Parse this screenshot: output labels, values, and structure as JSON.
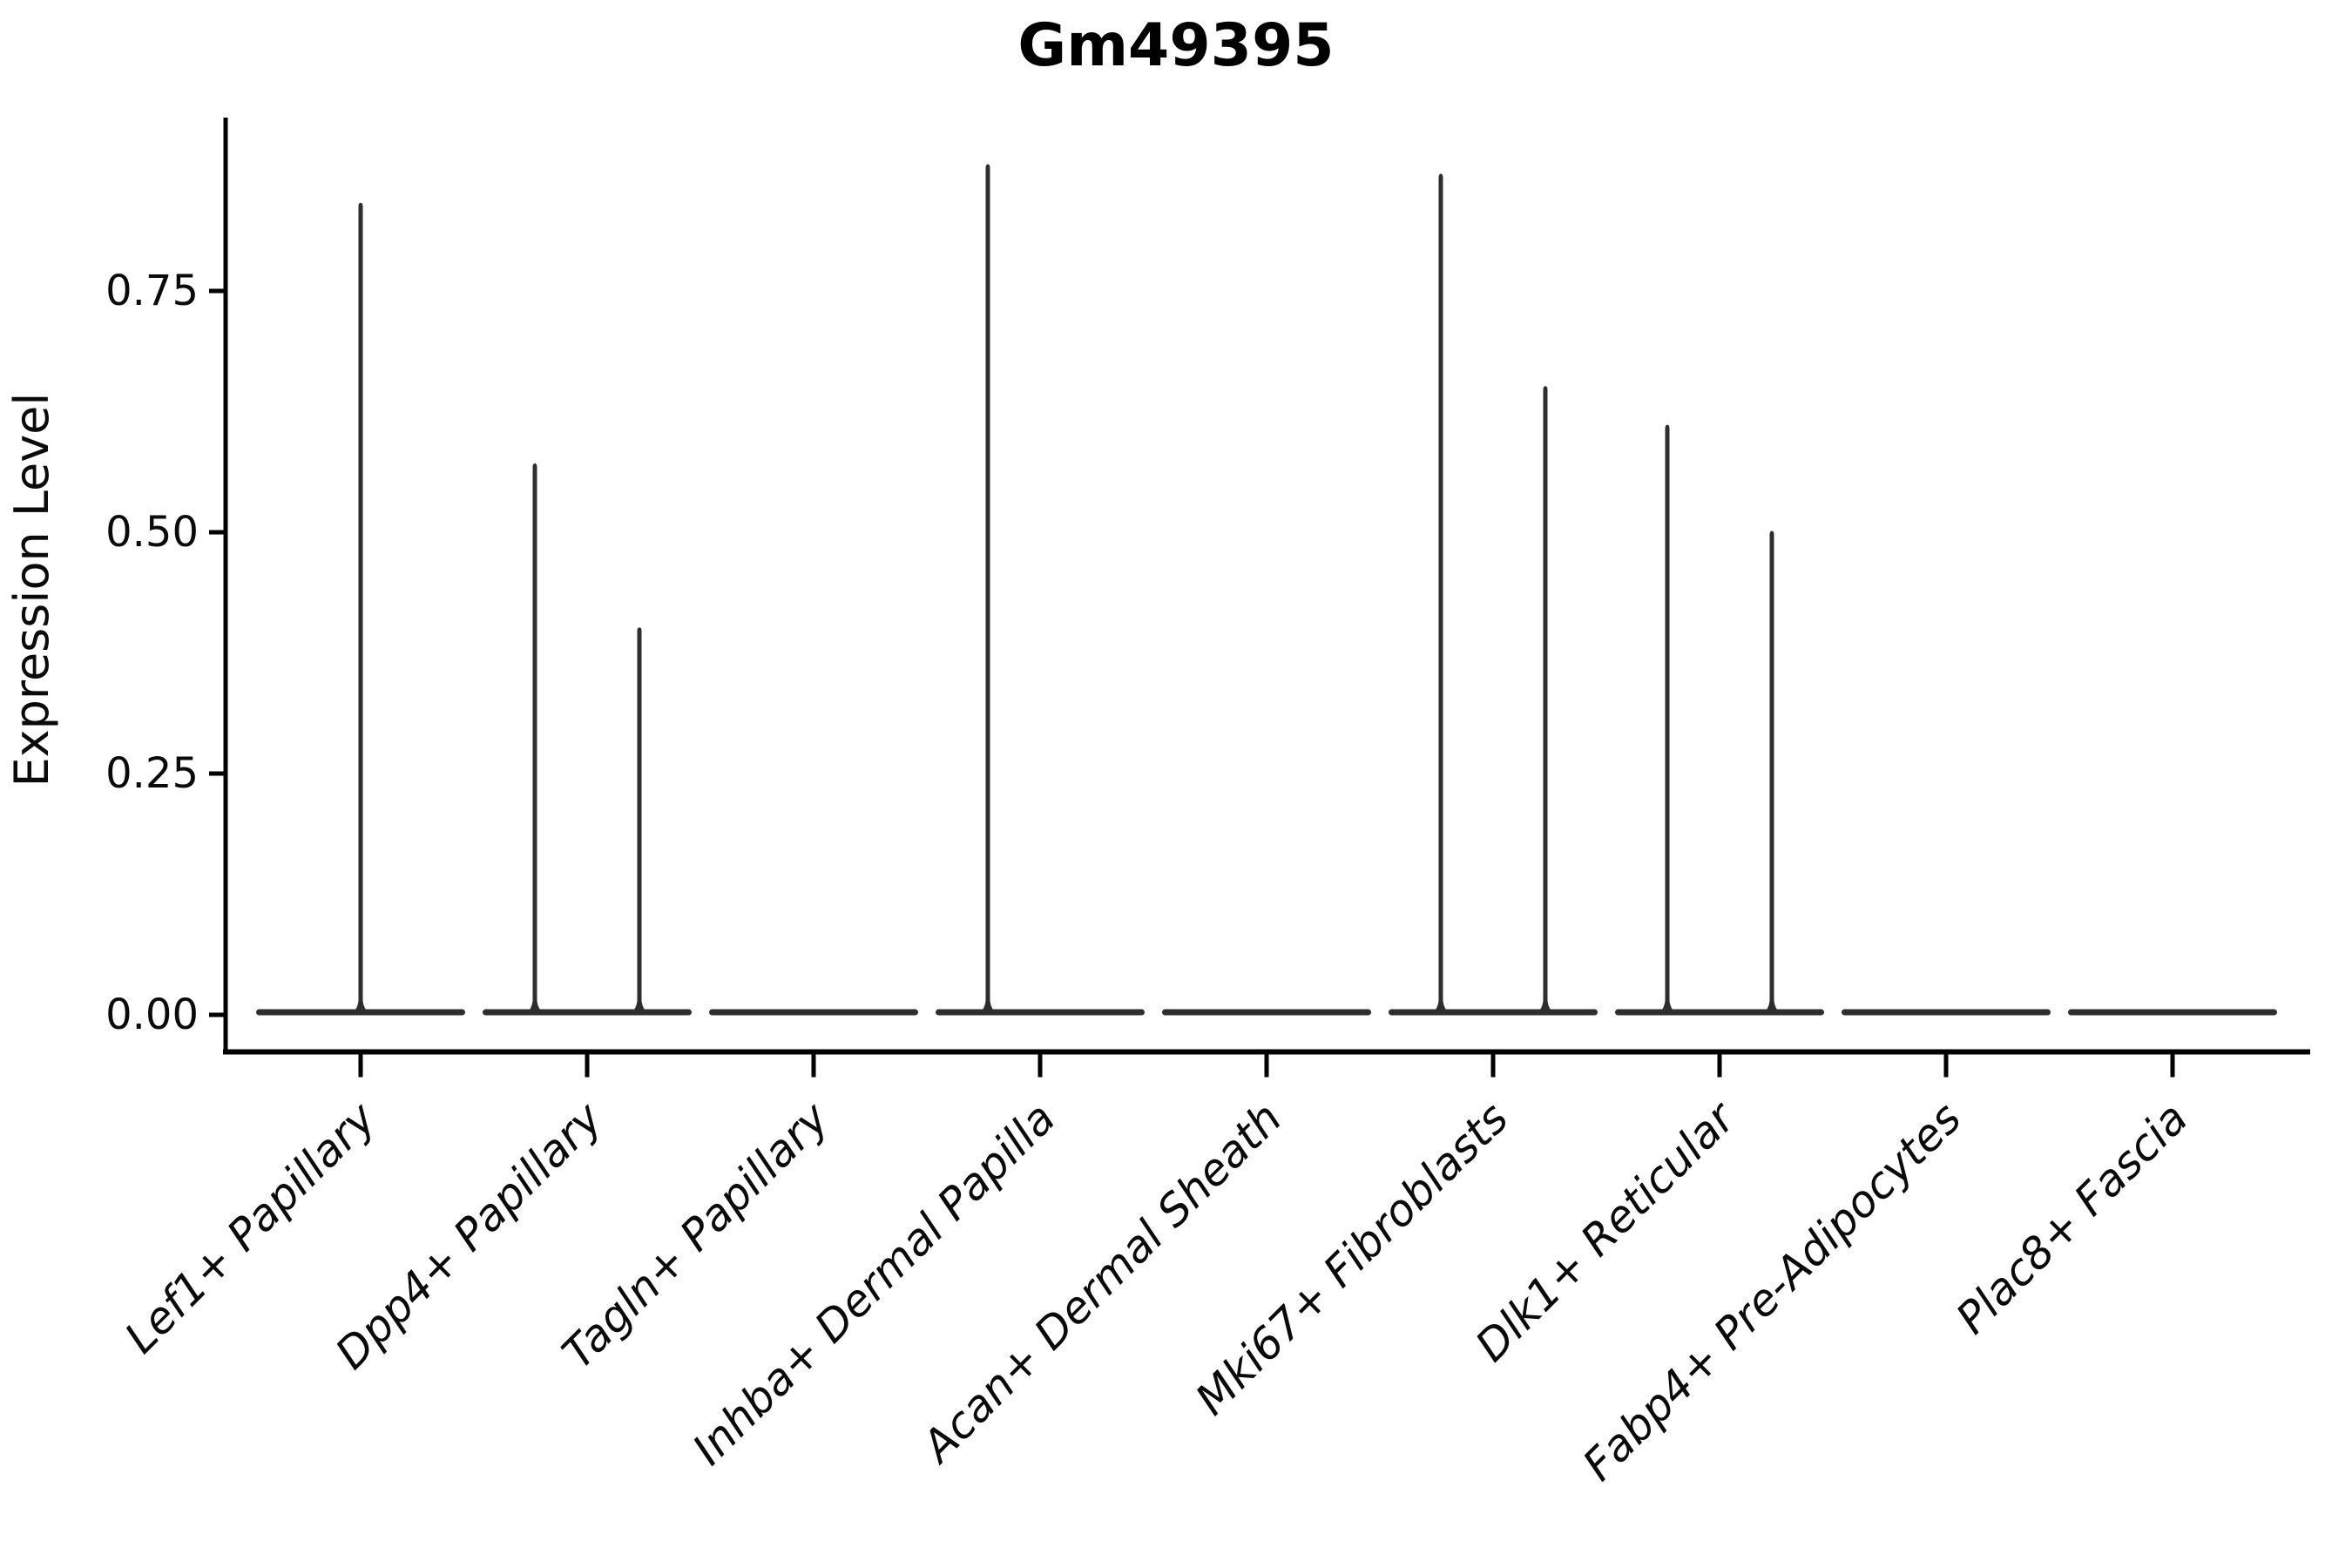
{
  "chart_data": {
    "type": "violin",
    "title": "Gm49395",
    "xlabel": "",
    "ylabel": "Expression Level",
    "ylim": [
      0,
      0.93
    ],
    "ytick_values": [
      0,
      0.25,
      0.5,
      0.75
    ],
    "ytick_labels": [
      "0.00",
      "0.25",
      "0.50",
      "0.75"
    ],
    "grid": false,
    "legend": "none",
    "violin_color": "#2e2e2e",
    "axis_color": "#000000",
    "categories": [
      {
        "label": "Lef1+ Papillary",
        "violins": [
          {
            "side": "full",
            "peak": 0.84
          }
        ]
      },
      {
        "label": "Dpp4+ Papillary",
        "violins": [
          {
            "side": "left",
            "peak": 0.57
          },
          {
            "side": "right",
            "peak": 0.4
          }
        ]
      },
      {
        "label": "Tagln+ Papillary",
        "violins": [
          {
            "side": "full",
            "peak": 0
          }
        ]
      },
      {
        "label": "Inhba+ Dermal Papilla",
        "violins": [
          {
            "side": "left",
            "peak": 0.88
          },
          {
            "side": "right",
            "peak": 0
          }
        ]
      },
      {
        "label": "Acan+ Dermal Sheath",
        "violins": [
          {
            "side": "full",
            "peak": 0
          }
        ]
      },
      {
        "label": "Mki67+ Fibroblasts",
        "violins": [
          {
            "side": "left",
            "peak": 0.87
          },
          {
            "side": "right",
            "peak": 0.65
          }
        ]
      },
      {
        "label": "Dlk1+ Reticular",
        "violins": [
          {
            "side": "left",
            "peak": 0.61
          },
          {
            "side": "right",
            "peak": 0.5
          }
        ]
      },
      {
        "label": "Fabp4+ Pre-Adipocytes",
        "violins": [
          {
            "side": "full",
            "peak": 0
          }
        ]
      },
      {
        "label": "Plac8+ Fascia",
        "violins": [
          {
            "side": "full",
            "peak": 0
          }
        ]
      }
    ]
  }
}
